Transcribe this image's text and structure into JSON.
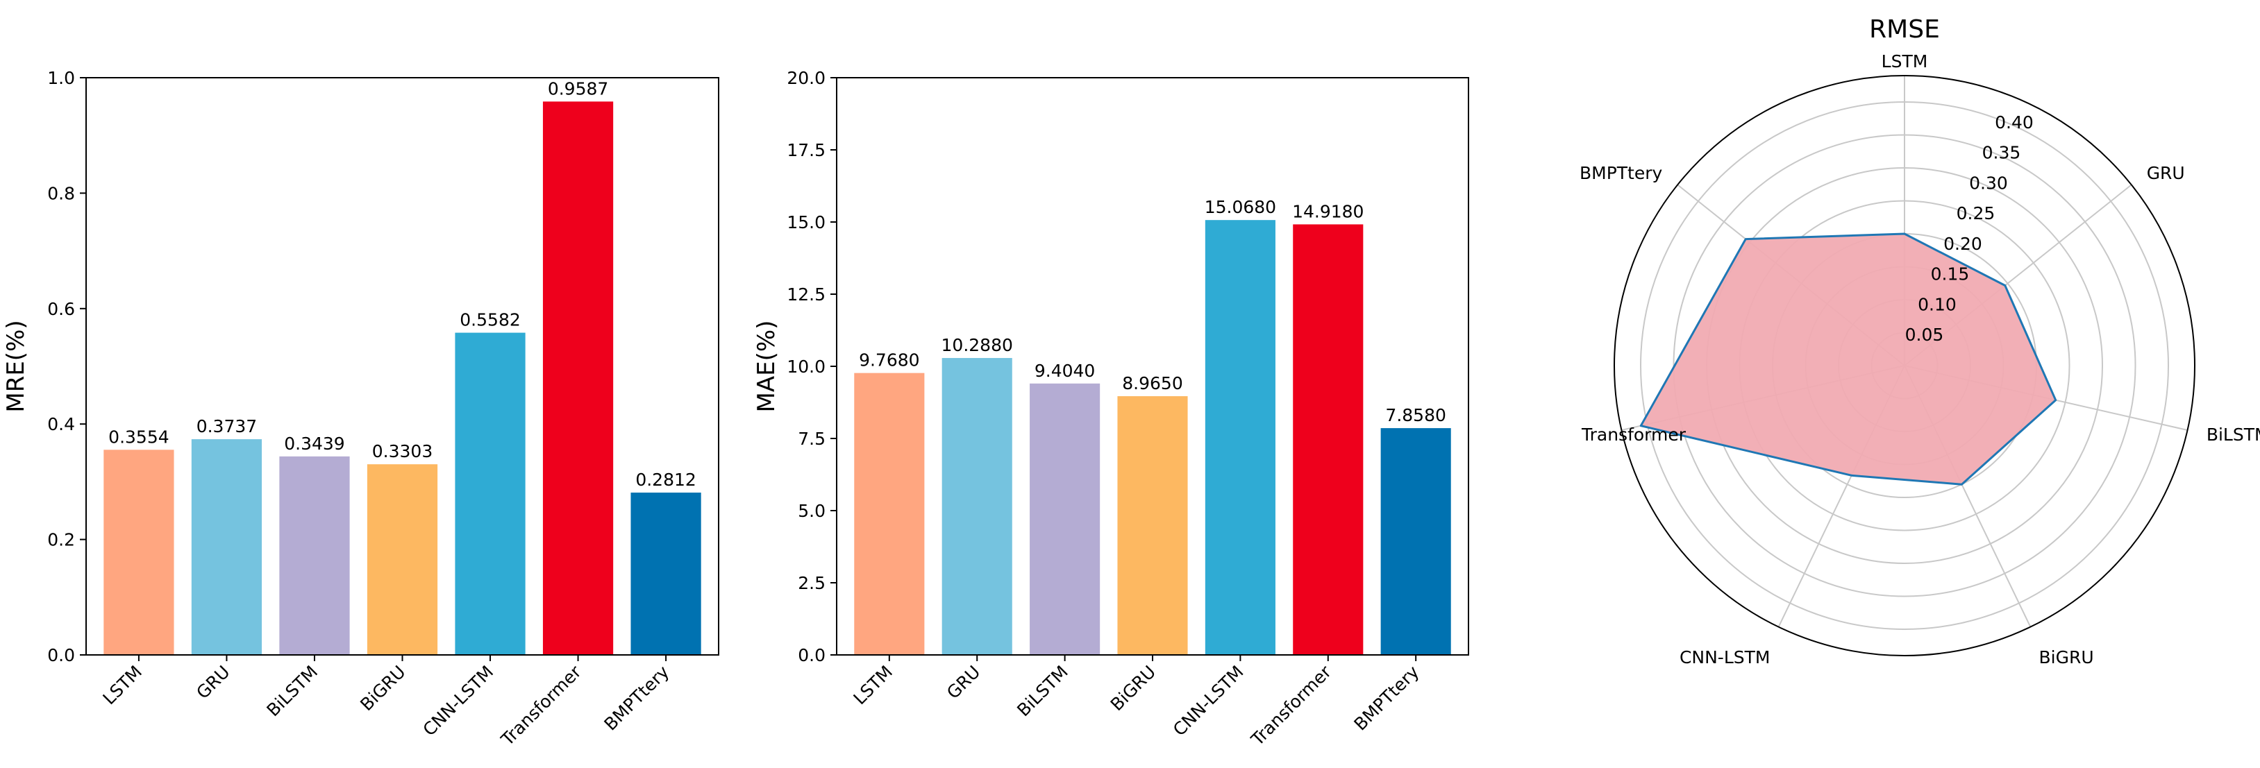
{
  "chart_data": [
    {
      "type": "bar",
      "categories": [
        "LSTM",
        "GRU",
        "BiLSTM",
        "BiGRU",
        "CNN-LSTM",
        "Transformer",
        "BMPTtery"
      ],
      "values": [
        0.3554,
        0.3737,
        0.3439,
        0.3303,
        0.5582,
        0.9587,
        0.2812
      ],
      "value_labels": [
        "0.3554",
        "0.3737",
        "0.3439",
        "0.3303",
        "0.5582",
        "0.9587",
        "0.2812"
      ],
      "colors": [
        "#FFA680",
        "#75C3DF",
        "#B4ACD3",
        "#FDB861",
        "#2FABD4",
        "#EE001C",
        "#0072B1"
      ],
      "title": "",
      "xlabel": "",
      "ylabel": "MRE(%)",
      "ylim": [
        0,
        1.0
      ],
      "yticks": [
        "0.0",
        "0.2",
        "0.4",
        "0.6",
        "0.8",
        "1.0"
      ],
      "grid": false
    },
    {
      "type": "bar",
      "categories": [
        "LSTM",
        "GRU",
        "BiLSTM",
        "BiGRU",
        "CNN-LSTM",
        "Transformer",
        "BMPTtery"
      ],
      "values": [
        9.768,
        10.288,
        9.404,
        8.965,
        15.068,
        14.918,
        7.858
      ],
      "value_labels": [
        "9.7680",
        "10.2880",
        "9.4040",
        "8.9650",
        "15.0680",
        "14.9180",
        "7.8580"
      ],
      "colors": [
        "#FFA680",
        "#75C3DF",
        "#B4ACD3",
        "#FDB861",
        "#2FABD4",
        "#EE001C",
        "#0072B1"
      ],
      "title": "",
      "xlabel": "",
      "ylabel": "MAE(%)",
      "ylim": [
        0,
        20.0
      ],
      "yticks": [
        "0.0",
        "2.5",
        "5.0",
        "7.5",
        "10.0",
        "12.5",
        "15.0",
        "17.5",
        "20.0"
      ],
      "grid": false
    },
    {
      "type": "radar",
      "title": "RMSE",
      "categories": [
        "LSTM",
        "GRU",
        "BiLSTM",
        "BiGRU",
        "CNN-LSTM",
        "Transformer",
        "BMPTtery"
      ],
      "values": [
        0.2,
        0.195,
        0.235,
        0.2,
        0.185,
        0.41,
        0.308
      ],
      "rlim": [
        0,
        0.44
      ],
      "rticks": [
        "0.05",
        "0.10",
        "0.15",
        "0.20",
        "0.25",
        "0.30",
        "0.35",
        "0.40"
      ],
      "fill_color": "#F1ABB2",
      "line_color": "#1F77B4",
      "grid": true
    }
  ]
}
